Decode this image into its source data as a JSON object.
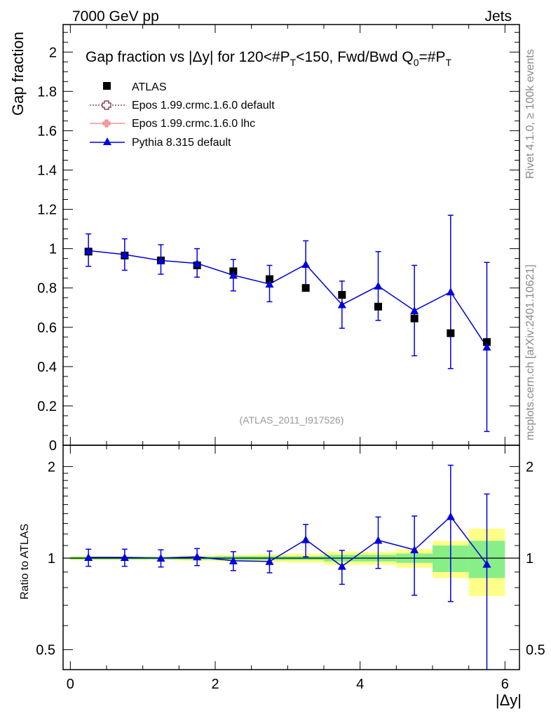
{
  "header": {
    "left": "7000 GeV pp",
    "right": "Jets"
  },
  "side_labels": {
    "rivet": "Rivet 4.1.0, ≥ 100k events",
    "mcplots": "mcplots.cern.ch [arXiv:2401.10621]"
  },
  "watermark": "(ATLAS_2011_I917526)",
  "chart_data": {
    "type": "scatter",
    "title": "Gap fraction vs |Δy| for 120<#P̅T<150, Fwd/Bwd Q0=#P̅T",
    "title_parts": {
      "main": "Gap fraction vs |Δy| for 120<#P",
      "sub1": "T",
      "mid": "<150, Fwd/Bwd Q",
      "sub2": "0",
      "eq": "=#P",
      "sub3": "T"
    },
    "xlabel": "|Δy|",
    "ylabel": "Gap fraction",
    "ratio_ylabel": "Ratio to ATLAS",
    "xlim": [
      -0.1,
      6.2
    ],
    "ylim": [
      0,
      2.14
    ],
    "ratio_ylim": [
      0.43,
      2.35
    ],
    "x_ticks": [
      0,
      2,
      4,
      6
    ],
    "x_tick_labels": [
      "0",
      "2",
      "4",
      "6"
    ],
    "y_ticks": [
      0,
      0.2,
      0.4,
      0.6,
      0.8,
      1,
      1.2,
      1.4,
      1.6,
      1.8,
      2
    ],
    "y_tick_labels": [
      "0",
      "0.2",
      "0.4",
      "0.6",
      "0.8",
      "1",
      "1.2",
      "1.4",
      "1.6",
      "1.8",
      "2"
    ],
    "ratio_ticks": [
      0.5,
      1,
      2
    ],
    "ratio_tick_labels": [
      "0.5",
      "1",
      "2"
    ],
    "legend": [
      "ATLAS",
      "Epos 1.99.crmc.1.6.0 default",
      "Epos 1.99.crmc.1.6.0 lhc",
      "Pythia 8.315 default"
    ],
    "legend_position": "top-left",
    "x_centers": [
      0.25,
      0.75,
      1.25,
      1.75,
      2.25,
      2.75,
      3.25,
      3.75,
      4.25,
      4.75,
      5.25,
      5.75
    ],
    "bin_edges": [
      0,
      0.5,
      1,
      1.5,
      2,
      2.5,
      3,
      3.5,
      4,
      4.5,
      5,
      5.5,
      6
    ],
    "series": [
      {
        "name": "ATLAS",
        "color": "#000000",
        "marker": "square",
        "values": [
          0.985,
          0.965,
          0.94,
          0.915,
          0.885,
          0.845,
          0.8,
          0.765,
          0.705,
          0.645,
          0.57,
          0.525
        ]
      },
      {
        "name": "Pythia 8.315 default",
        "color": "#0000dd",
        "marker": "triangle",
        "values": [
          0.99,
          0.97,
          0.94,
          0.925,
          0.865,
          0.82,
          0.92,
          0.715,
          0.81,
          0.685,
          0.78,
          0.5
        ],
        "err_low": [
          0.08,
          0.08,
          0.07,
          0.07,
          0.08,
          0.09,
          0.12,
          0.12,
          0.175,
          0.23,
          0.39,
          0.43
        ],
        "err_high": [
          0.085,
          0.08,
          0.08,
          0.075,
          0.08,
          0.095,
          0.12,
          0.12,
          0.175,
          0.23,
          0.39,
          0.43
        ]
      }
    ],
    "ratio": {
      "values": [
        1.005,
        1.005,
        1.0,
        1.01,
        0.98,
        0.975,
        1.15,
        0.94,
        1.145,
        1.065,
        1.37,
        0.955
      ],
      "err_low": [
        0.065,
        0.065,
        0.065,
        0.065,
        0.07,
        0.08,
        0.14,
        0.12,
        0.22,
        0.31,
        0.65,
        0.67
      ],
      "err_high": [
        0.065,
        0.065,
        0.065,
        0.065,
        0.07,
        0.08,
        0.14,
        0.12,
        0.22,
        0.31,
        0.65,
        0.67
      ],
      "band_green": [
        0.01,
        0.01,
        0.01,
        0.012,
        0.015,
        0.015,
        0.015,
        0.025,
        0.025,
        0.035,
        0.1,
        0.14
      ],
      "band_yellow": [
        0.015,
        0.015,
        0.015,
        0.02,
        0.025,
        0.03,
        0.035,
        0.05,
        0.05,
        0.07,
        0.14,
        0.25
      ]
    }
  }
}
